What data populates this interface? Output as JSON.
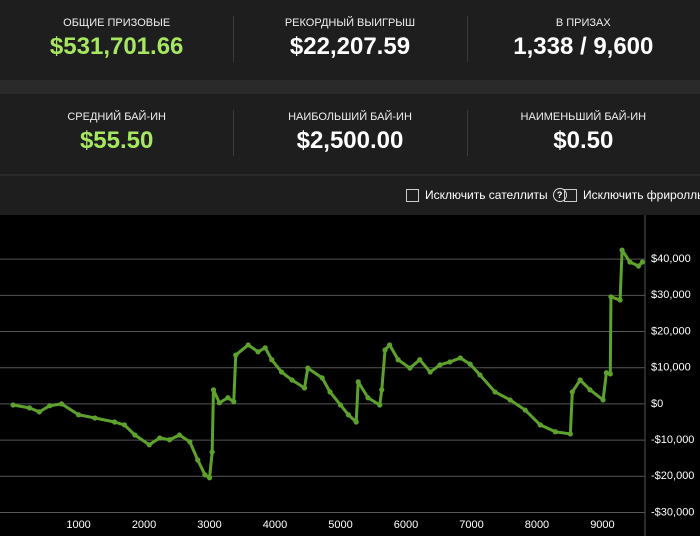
{
  "stats": [
    [
      {
        "label": "ОБЩИЕ ПРИЗОВЫЕ",
        "value": "$531,701.66"
      },
      {
        "label": "РЕКОРДНЫЙ ВЫИГРЫШ",
        "value": "$22,207.59"
      },
      {
        "label": "В ПРИЗАХ",
        "value": "1,338 / 9,600"
      }
    ],
    [
      {
        "label": "СРЕДНИЙ БАЙ-ИН",
        "value": "$55.50"
      },
      {
        "label": "НАИБОЛЬШИЙ БАЙ-ИН",
        "value": "$2,500.00"
      },
      {
        "label": "НАИМЕНЬШИЙ БАЙ-ИН",
        "value": "$0.50"
      }
    ]
  ],
  "filters": [
    "Исключить сателлиты",
    "Исключить фрироллы"
  ],
  "chart_data": {
    "type": "line",
    "x": [
      0,
      250,
      400,
      560,
      740,
      1000,
      1250,
      1550,
      1700,
      1860,
      2080,
      2240,
      2390,
      2540,
      2700,
      2820,
      2930,
      3000,
      3040,
      3060,
      3150,
      3280,
      3370,
      3400,
      3590,
      3740,
      3850,
      3950,
      4100,
      4260,
      4450,
      4500,
      4720,
      4840,
      5000,
      5120,
      5240,
      5270,
      5420,
      5600,
      5630,
      5680,
      5750,
      5880,
      6060,
      6210,
      6370,
      6520,
      6670,
      6830,
      6980,
      7130,
      7360,
      7590,
      7820,
      8050,
      8280,
      8510,
      8540,
      8660,
      8810,
      9010,
      9060,
      9120,
      9130,
      9270,
      9300,
      9420,
      9550,
      9610
    ],
    "series": [
      {
        "color": "#5ea22e",
        "values": [
          -300,
          -1100,
          -2200,
          -500,
          0,
          -3000,
          -3900,
          -5000,
          -5800,
          -8600,
          -11300,
          -9400,
          -9900,
          -8600,
          -10500,
          -15500,
          -19600,
          -20400,
          -13300,
          3900,
          300,
          1700,
          600,
          13500,
          16300,
          14400,
          15500,
          12200,
          8800,
          6600,
          4400,
          9900,
          7200,
          3300,
          -300,
          -3000,
          -5000,
          6100,
          1700,
          -300,
          3900,
          14900,
          16300,
          12200,
          9900,
          12200,
          8800,
          10800,
          11600,
          12700,
          11000,
          8000,
          3300,
          1100,
          -1700,
          -5800,
          -7700,
          -8300,
          3300,
          6600,
          3900,
          1100,
          8600,
          8300,
          29600,
          28700,
          42500,
          39200,
          38100,
          39200
        ]
      }
    ],
    "xlim": [
      -200,
      9650
    ],
    "ylim": [
      -36500,
      52200
    ],
    "xticks": [
      1000,
      2000,
      3000,
      4000,
      5000,
      6000,
      7000,
      8000,
      9000
    ],
    "yticks": [
      {
        "value": 40000,
        "label": "$40,000"
      },
      {
        "value": 30000,
        "label": "$30,000"
      },
      {
        "value": 20000,
        "label": "$20,000"
      },
      {
        "value": 10000,
        "label": "$10,000"
      },
      {
        "value": 0,
        "label": "$0"
      },
      {
        "value": -10000,
        "label": "-$10,000"
      },
      {
        "value": -20000,
        "label": "-$20,000"
      },
      {
        "value": -30000,
        "label": "-$30,000"
      }
    ],
    "grid": true
  }
}
